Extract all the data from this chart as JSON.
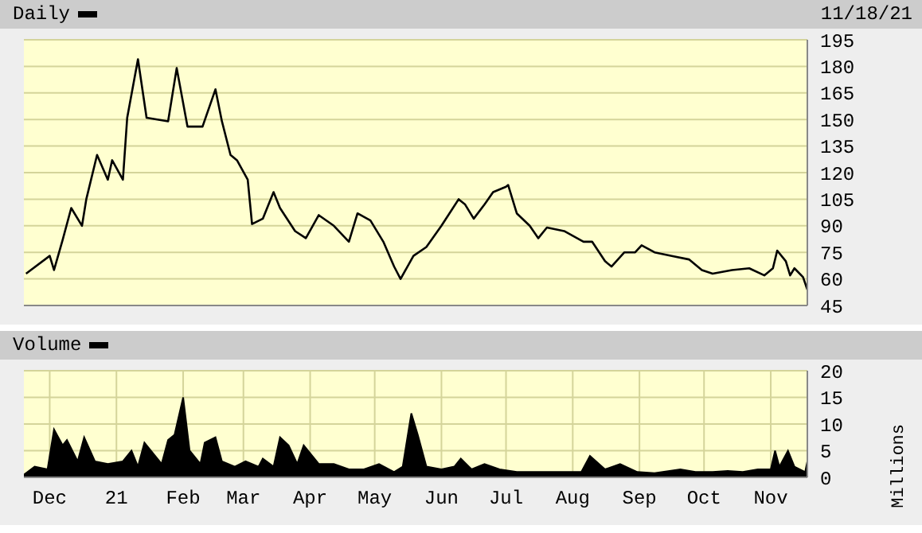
{
  "chart_data": [
    {
      "type": "line",
      "subtitle": "11/18/21",
      "legend": "top left",
      "grid": true,
      "tick_labels": "y",
      "xlim": [
        "2020-11-19",
        "2021-11-18"
      ],
      "xticks": [
        {
          "value": "2020-12-01",
          "label": null
        },
        {
          "value": "2021-01-01",
          "label": null
        },
        {
          "value": "2021-02-01",
          "label": null
        },
        {
          "value": "2021-03-01",
          "label": null
        },
        {
          "value": "2021-04-01",
          "label": null
        },
        {
          "value": "2021-05-01",
          "label": null
        },
        {
          "value": "2021-06-01",
          "label": null
        },
        {
          "value": "2021-07-01",
          "label": null
        },
        {
          "value": "2021-08-01",
          "label": null
        },
        {
          "value": "2021-09-01",
          "label": null
        },
        {
          "value": "2021-10-01",
          "label": null
        },
        {
          "value": "2021-11-01",
          "label": null
        }
      ],
      "ylim": [
        45,
        195
      ],
      "yticks": [
        45,
        60,
        75,
        90,
        105,
        120,
        135,
        150,
        165,
        180,
        195
      ],
      "x": [
        "2020-11-20",
        "2020-12-01",
        "2020-12-03",
        "2020-12-07",
        "2020-12-11",
        "2020-12-16",
        "2020-12-18",
        "2020-12-23",
        "2020-12-28",
        "2020-12-30",
        "2021-01-04",
        "2021-01-06",
        "2021-01-11",
        "2021-01-15",
        "2021-01-25",
        "2021-01-29",
        "2021-02-03",
        "2021-02-10",
        "2021-02-16",
        "2021-02-19",
        "2021-02-23",
        "2021-02-26",
        "2021-03-03",
        "2021-03-05",
        "2021-03-10",
        "2021-03-15",
        "2021-03-18",
        "2021-03-25",
        "2021-03-30",
        "2021-04-05",
        "2021-04-12",
        "2021-04-19",
        "2021-04-23",
        "2021-04-29",
        "2021-05-05",
        "2021-05-10",
        "2021-05-13",
        "2021-05-19",
        "2021-05-25",
        "2021-06-01",
        "2021-06-09",
        "2021-06-12",
        "2021-06-16",
        "2021-06-21",
        "2021-06-25",
        "2021-07-01",
        "2021-07-02",
        "2021-07-06",
        "2021-07-12",
        "2021-07-16",
        "2021-07-20",
        "2021-07-28",
        "2021-08-06",
        "2021-08-10",
        "2021-08-16",
        "2021-08-19",
        "2021-08-25",
        "2021-08-30",
        "2021-09-02",
        "2021-09-08",
        "2021-09-16",
        "2021-09-24",
        "2021-09-30",
        "2021-10-05",
        "2021-10-14",
        "2021-10-22",
        "2021-10-29",
        "2021-11-02",
        "2021-11-04",
        "2021-11-08",
        "2021-11-10",
        "2021-11-12",
        "2021-11-16",
        "2021-11-18"
      ],
      "series": [
        {
          "name": "Daily",
          "color": "#000000",
          "values": [
            63,
            73,
            65,
            82,
            100,
            90,
            105,
            130,
            116,
            127,
            116,
            151,
            184,
            151,
            149,
            179,
            146,
            146,
            167,
            149,
            130,
            127,
            116,
            91,
            94,
            109,
            100,
            87,
            83,
            96,
            90,
            81,
            97,
            93,
            81,
            67,
            60,
            73,
            78,
            90,
            105,
            102,
            94,
            102,
            109,
            112,
            113,
            97,
            90,
            83,
            89,
            87,
            81,
            81,
            70,
            67,
            75,
            75,
            79,
            75,
            73,
            71,
            65,
            63,
            65,
            66,
            62,
            66,
            76,
            70,
            62,
            66,
            61,
            54
          ]
        }
      ]
    },
    {
      "type": "area",
      "legend": "top left",
      "grid": true,
      "ylabel": "Millions",
      "xlim": [
        "2020-11-19",
        "2021-11-18"
      ],
      "xticks": [
        {
          "value": "2020-12-01",
          "label": "Dec"
        },
        {
          "value": "2021-01-01",
          "label": "21"
        },
        {
          "value": "2021-02-01",
          "label": "Feb"
        },
        {
          "value": "2021-03-01",
          "label": "Mar"
        },
        {
          "value": "2021-04-01",
          "label": "Apr"
        },
        {
          "value": "2021-05-01",
          "label": "May"
        },
        {
          "value": "2021-06-01",
          "label": "Jun"
        },
        {
          "value": "2021-07-01",
          "label": "Jul"
        },
        {
          "value": "2021-08-01",
          "label": "Aug"
        },
        {
          "value": "2021-09-01",
          "label": "Sep"
        },
        {
          "value": "2021-10-01",
          "label": "Oct"
        },
        {
          "value": "2021-11-01",
          "label": "Nov"
        }
      ],
      "ylim": [
        0,
        20
      ],
      "yticks": [
        0,
        5,
        10,
        15,
        20
      ],
      "x": [
        "2020-11-19",
        "2020-11-24",
        "2020-11-30",
        "2020-12-03",
        "2020-12-07",
        "2020-12-09",
        "2020-12-14",
        "2020-12-17",
        "2020-12-22",
        "2020-12-28",
        "2021-01-04",
        "2021-01-08",
        "2021-01-11",
        "2021-01-14",
        "2021-01-19",
        "2021-01-22",
        "2021-01-25",
        "2021-01-28",
        "2021-02-01",
        "2021-02-04",
        "2021-02-09",
        "2021-02-11",
        "2021-02-16",
        "2021-02-19",
        "2021-02-25",
        "2021-03-02",
        "2021-03-08",
        "2021-03-10",
        "2021-03-15",
        "2021-03-18",
        "2021-03-22",
        "2021-03-26",
        "2021-03-29",
        "2021-04-05",
        "2021-04-12",
        "2021-04-19",
        "2021-04-26",
        "2021-05-03",
        "2021-05-10",
        "2021-05-14",
        "2021-05-18",
        "2021-05-21",
        "2021-05-25",
        "2021-06-01",
        "2021-06-07",
        "2021-06-10",
        "2021-06-15",
        "2021-06-21",
        "2021-06-28",
        "2021-07-06",
        "2021-07-14",
        "2021-07-21",
        "2021-07-28",
        "2021-08-05",
        "2021-08-09",
        "2021-08-16",
        "2021-08-23",
        "2021-08-31",
        "2021-09-08",
        "2021-09-20",
        "2021-09-27",
        "2021-10-05",
        "2021-10-12",
        "2021-10-19",
        "2021-10-26",
        "2021-11-01",
        "2021-11-03",
        "2021-11-05",
        "2021-11-09",
        "2021-11-12",
        "2021-11-17",
        "2021-11-18"
      ],
      "series": [
        {
          "name": "Volume",
          "color": "#000000",
          "values": [
            0.5,
            2,
            1.5,
            9,
            6,
            7,
            3,
            7.5,
            3,
            2.5,
            3,
            5,
            2,
            6.5,
            4,
            2.5,
            7,
            8,
            15,
            5,
            2.5,
            6.5,
            7.5,
            3,
            2,
            3,
            2,
            3.5,
            2,
            7.5,
            6,
            2.5,
            6,
            2.5,
            2.5,
            1.5,
            1.5,
            2.5,
            1,
            2,
            12,
            8,
            2,
            1.5,
            2,
            3.5,
            1.5,
            2.5,
            1.5,
            1,
            1,
            1,
            1,
            1,
            4,
            1.5,
            2.5,
            1,
            0.8,
            1.5,
            1,
            1,
            1.2,
            1,
            1.5,
            1.5,
            5,
            2,
            5,
            2,
            1,
            3
          ]
        }
      ]
    }
  ]
}
